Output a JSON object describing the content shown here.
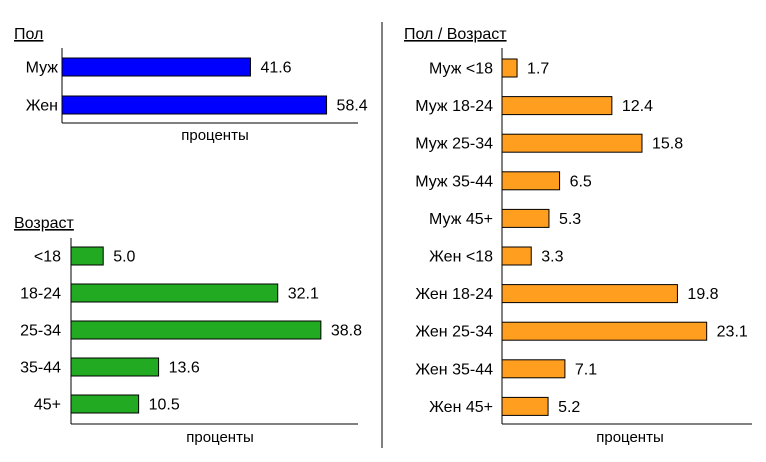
{
  "chart_data": [
    {
      "type": "bar",
      "orientation": "horizontal",
      "title": "Пол",
      "xlabel": "проценты",
      "categories": [
        "Муж",
        "Жен"
      ],
      "values": [
        41.6,
        58.4
      ],
      "value_labels": [
        "41.6",
        "58.4"
      ],
      "color": "#0000ff",
      "xlim": [
        0,
        60
      ],
      "grid": false
    },
    {
      "type": "bar",
      "orientation": "horizontal",
      "title": "Возраст",
      "xlabel": "проценты",
      "categories": [
        "<18",
        "18-24",
        "25-34",
        "35-44",
        "45+"
      ],
      "values": [
        5.0,
        32.1,
        38.8,
        13.6,
        10.5
      ],
      "value_labels": [
        "5.0",
        "32.1",
        "38.8",
        "13.6",
        "10.5"
      ],
      "color": "#22aa22",
      "xlim": [
        0,
        40
      ],
      "grid": false
    },
    {
      "type": "bar",
      "orientation": "horizontal",
      "title": "Пол / Возраст",
      "xlabel": "проценты",
      "categories": [
        "Муж <18",
        "Муж 18-24",
        "Муж 25-34",
        "Муж 35-44",
        "Муж 45+",
        "Жен <18",
        "Жен 18-24",
        "Жен 25-34",
        "Жен 35-44",
        "Жен 45+"
      ],
      "values": [
        1.7,
        12.4,
        15.8,
        6.5,
        5.3,
        3.3,
        19.8,
        23.1,
        7.1,
        5.2
      ],
      "value_labels": [
        "1.7",
        "12.4",
        "15.8",
        "6.5",
        "5.3",
        "3.3",
        "19.8",
        "23.1",
        "7.1",
        "5.2"
      ],
      "color": "#ff9e1f",
      "xlim": [
        0,
        25
      ],
      "grid": false
    }
  ]
}
